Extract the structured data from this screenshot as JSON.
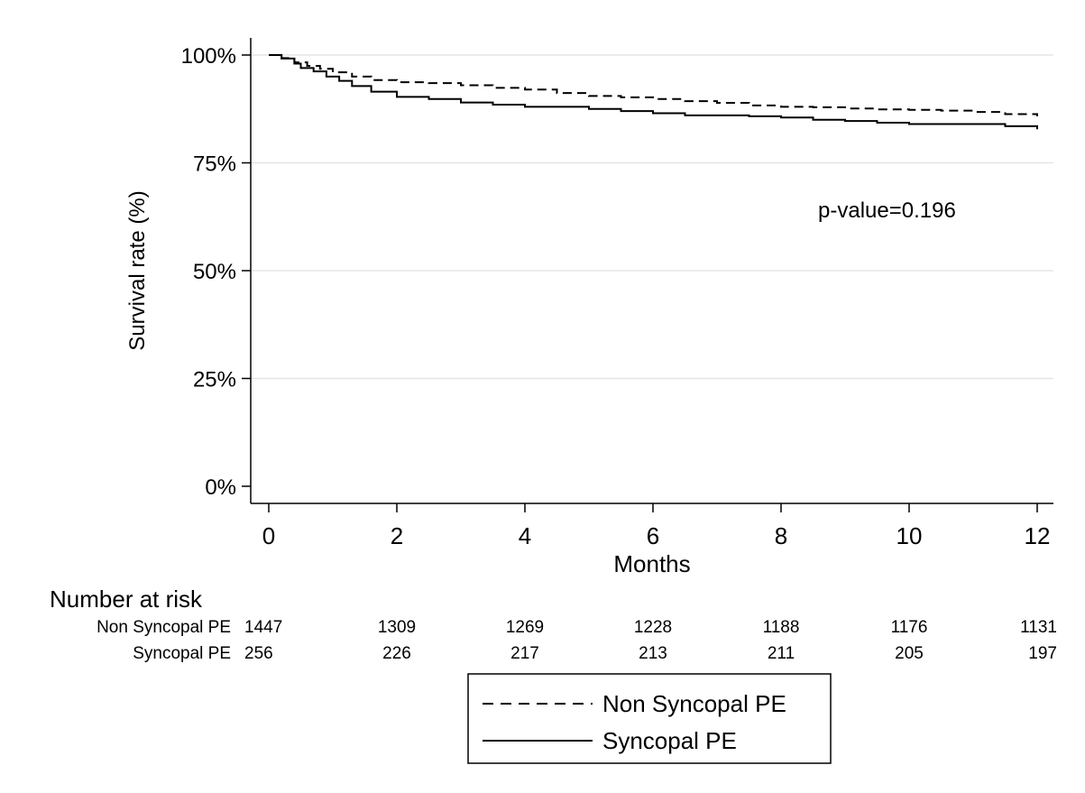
{
  "chart_data": {
    "type": "line",
    "title": "",
    "xlabel": "Months",
    "ylabel": "Survival rate (%)",
    "xlim": [
      0,
      12
    ],
    "ylim": [
      0,
      100
    ],
    "x_ticks": [
      0,
      2,
      4,
      6,
      8,
      10,
      12
    ],
    "x_tick_labels": [
      "0",
      "2",
      "4",
      "6",
      "8",
      "10",
      "12"
    ],
    "y_ticks": [
      0,
      25,
      50,
      75,
      100
    ],
    "y_tick_labels": [
      "0%",
      "25%",
      "50%",
      "75%",
      "100%"
    ],
    "grid": "horizontal",
    "legend_position": "bottom",
    "annotation": "p-value=0.196",
    "series": [
      {
        "name": "Non Syncopal PE",
        "style": "dashed",
        "color": "#000000",
        "x": [
          0,
          0.2,
          0.4,
          0.6,
          0.8,
          1.0,
          1.3,
          1.6,
          2.0,
          2.5,
          3.0,
          3.5,
          4.0,
          4.5,
          5.0,
          5.5,
          6.0,
          6.5,
          7.0,
          7.5,
          8.0,
          8.5,
          9.0,
          9.5,
          10.0,
          10.5,
          11.0,
          11.5,
          12.0
        ],
        "y": [
          100,
          99.3,
          98.3,
          97.5,
          96.8,
          96.0,
          95.0,
          94.2,
          93.7,
          93.5,
          93.0,
          92.4,
          92.0,
          91.2,
          90.5,
          90.2,
          89.8,
          89.3,
          88.9,
          88.3,
          88.0,
          87.9,
          87.6,
          87.4,
          87.3,
          87.1,
          86.8,
          86.3,
          85.8
        ]
      },
      {
        "name": "Syncopal PE",
        "style": "solid",
        "color": "#000000",
        "x": [
          0,
          0.2,
          0.4,
          0.5,
          0.7,
          0.9,
          1.1,
          1.3,
          1.6,
          2.0,
          2.5,
          3.0,
          3.5,
          4.0,
          5.0,
          5.5,
          6.0,
          6.5,
          7.0,
          7.5,
          8.0,
          8.5,
          9.0,
          9.5,
          10.0,
          11.0,
          11.5,
          12.0
        ],
        "y": [
          100,
          99.2,
          98.0,
          97.0,
          96.2,
          95.0,
          94.0,
          92.8,
          91.5,
          90.3,
          89.8,
          89.0,
          88.5,
          88.0,
          87.5,
          87.0,
          86.5,
          86.0,
          86.0,
          85.8,
          85.5,
          85.0,
          84.7,
          84.3,
          84.0,
          84.0,
          83.5,
          82.8
        ]
      }
    ]
  },
  "risk_table": {
    "header": "Number at risk",
    "rows": [
      {
        "label": "Non Syncopal PE",
        "values": [
          "1447",
          "1309",
          "1269",
          "1228",
          "1188",
          "1176",
          "1131"
        ]
      },
      {
        "label": "Syncopal PE",
        "values": [
          "256",
          "226",
          "217",
          "213",
          "211",
          "205",
          "197"
        ]
      }
    ]
  }
}
